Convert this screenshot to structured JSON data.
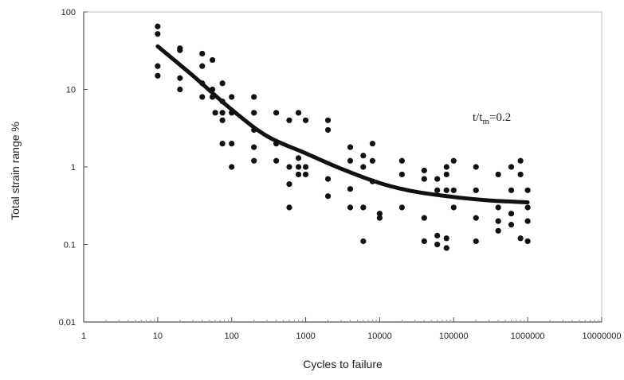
{
  "chart_data": {
    "type": "scatter",
    "title": "",
    "xlabel": "Cycles to failure",
    "ylabel": "Total strain range %",
    "xscale": "log",
    "yscale": "log",
    "xlim": [
      1,
      10000000
    ],
    "ylim": [
      0.01,
      100
    ],
    "grid": false,
    "x_tick_labels": [
      "1",
      "10",
      "100",
      "1000",
      "10000",
      "100000",
      "1000000",
      "10000000"
    ],
    "y_tick_labels": [
      "0.01",
      "0.1",
      "1",
      "10",
      "100"
    ],
    "annotation": {
      "base": "t/t",
      "subscript": "m",
      "rest": "=0.2"
    },
    "series": [
      {
        "type": "scatter",
        "points": [
          [
            10,
            65
          ],
          [
            10,
            52
          ],
          [
            10,
            20
          ],
          [
            10,
            15
          ],
          [
            20,
            34
          ],
          [
            20,
            32
          ],
          [
            20,
            14
          ],
          [
            20,
            10
          ],
          [
            40,
            29
          ],
          [
            40,
            20
          ],
          [
            40,
            12
          ],
          [
            40,
            8
          ],
          [
            55,
            24
          ],
          [
            55,
            10
          ],
          [
            55,
            8
          ],
          [
            60,
            5
          ],
          [
            75,
            12
          ],
          [
            75,
            7
          ],
          [
            75,
            5
          ],
          [
            75,
            4
          ],
          [
            75,
            2
          ],
          [
            100,
            8
          ],
          [
            100,
            5
          ],
          [
            100,
            2
          ],
          [
            100,
            1
          ],
          [
            200,
            8
          ],
          [
            200,
            5
          ],
          [
            200,
            3
          ],
          [
            200,
            1.8
          ],
          [
            200,
            1.2
          ],
          [
            400,
            5
          ],
          [
            400,
            2
          ],
          [
            400,
            1.2
          ],
          [
            600,
            4
          ],
          [
            600,
            1
          ],
          [
            600,
            0.6
          ],
          [
            600,
            0.3
          ],
          [
            800,
            5
          ],
          [
            800,
            1.3
          ],
          [
            800,
            1
          ],
          [
            800,
            0.8
          ],
          [
            1000,
            4
          ],
          [
            1000,
            1
          ],
          [
            1000,
            0.8
          ],
          [
            2000,
            4
          ],
          [
            2000,
            3
          ],
          [
            2000,
            0.7
          ],
          [
            2000,
            0.42
          ],
          [
            4000,
            1.8
          ],
          [
            4000,
            1.2
          ],
          [
            4000,
            0.52
          ],
          [
            4000,
            0.3
          ],
          [
            6000,
            1.4
          ],
          [
            6000,
            1
          ],
          [
            6000,
            0.3
          ],
          [
            6000,
            0.11
          ],
          [
            8000,
            2
          ],
          [
            8000,
            1.2
          ],
          [
            8000,
            0.65
          ],
          [
            10000,
            0.25
          ],
          [
            10000,
            0.22
          ],
          [
            20000,
            1.2
          ],
          [
            20000,
            0.8
          ],
          [
            20000,
            0.3
          ],
          [
            40000,
            0.9
          ],
          [
            40000,
            0.7
          ],
          [
            40000,
            0.22
          ],
          [
            40000,
            0.11
          ],
          [
            60000,
            0.7
          ],
          [
            60000,
            0.5
          ],
          [
            60000,
            0.13
          ],
          [
            60000,
            0.1
          ],
          [
            80000,
            1
          ],
          [
            80000,
            0.8
          ],
          [
            80000,
            0.5
          ],
          [
            80000,
            0.12
          ],
          [
            80000,
            0.09
          ],
          [
            100000,
            1.2
          ],
          [
            100000,
            0.5
          ],
          [
            100000,
            0.3
          ],
          [
            200000,
            1
          ],
          [
            200000,
            0.5
          ],
          [
            200000,
            0.22
          ],
          [
            200000,
            0.11
          ],
          [
            400000,
            0.8
          ],
          [
            400000,
            0.3
          ],
          [
            400000,
            0.2
          ],
          [
            400000,
            0.15
          ],
          [
            600000,
            1
          ],
          [
            600000,
            0.5
          ],
          [
            600000,
            0.25
          ],
          [
            600000,
            0.18
          ],
          [
            800000,
            1.2
          ],
          [
            800000,
            0.8
          ],
          [
            800000,
            0.12
          ],
          [
            1000000,
            0.5
          ],
          [
            1000000,
            0.3
          ],
          [
            1000000,
            0.2
          ],
          [
            1000000,
            0.11
          ]
        ]
      },
      {
        "type": "line",
        "points": [
          [
            10,
            36
          ],
          [
            30,
            15
          ],
          [
            100,
            5.5
          ],
          [
            300,
            2.5
          ],
          [
            1000,
            1.5
          ],
          [
            3000,
            0.95
          ],
          [
            10000,
            0.62
          ],
          [
            30000,
            0.48
          ],
          [
            100000,
            0.41
          ],
          [
            300000,
            0.37
          ],
          [
            1000000,
            0.35
          ]
        ]
      }
    ]
  }
}
